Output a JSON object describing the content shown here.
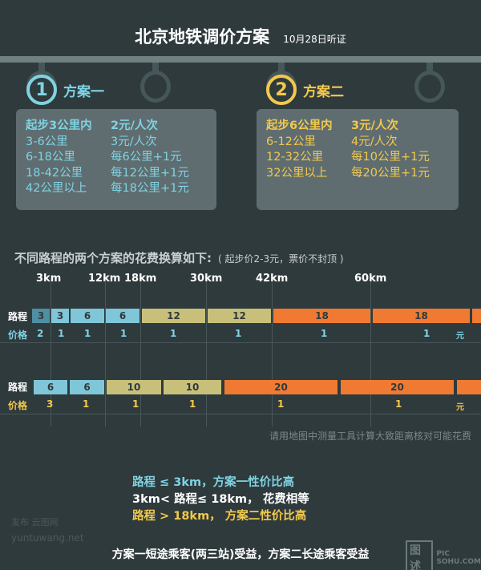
{
  "title": {
    "main": "北京地铁调价方案",
    "sub": "10月28日听证"
  },
  "plan1": {
    "num": "1",
    "name": "方案一",
    "rows": [
      [
        "起步3公里内",
        "2元/人次"
      ],
      [
        "3-6公里",
        "3元/人次"
      ],
      [
        "6-18公里",
        "每6公里+1元"
      ],
      [
        "18-42公里",
        "每12公里+1元"
      ],
      [
        "42公里以上",
        "每18公里+1元"
      ]
    ]
  },
  "plan2": {
    "num": "2",
    "name": "方案二",
    "rows": [
      [
        "起步6公里内",
        "3元/人次"
      ],
      [
        "6-12公里",
        "4元/人次"
      ],
      [
        "12-32公里",
        "每10公里+1元"
      ],
      [
        "32公里以上",
        "每20公里+1元"
      ]
    ]
  },
  "compare": {
    "title": "不同路程的两个方案的花费换算如下:",
    "note": "( 起步价2-3元，票价不封顶 )",
    "km_labels": [
      "3km",
      "12km",
      "18km",
      "30km",
      "42km",
      "60km"
    ],
    "row_label_distance": "路程",
    "row_label_price": "价格",
    "plan1_segments": [
      "3",
      "3",
      "6",
      "6",
      "12",
      "12",
      "18",
      "18"
    ],
    "plan1_prices": [
      "2",
      "1",
      "1",
      "1",
      "1",
      "1",
      "1",
      "1",
      "元"
    ],
    "plan2_segments": [
      "6",
      "6",
      "10",
      "10",
      "20",
      "20"
    ],
    "plan2_prices": [
      "3",
      "1",
      "1",
      "1",
      "1",
      "1",
      "元"
    ]
  },
  "footnote": "请用地图中测量工具计算大致距离核对可能花费",
  "summary": {
    "line1": "路程 ≤ 3km，方案一性价比高",
    "line2": "3km< 路程≤ 18km， 花费相等",
    "line3": "路程 > 18km， 方案二性价比高"
  },
  "watermark": {
    "line1": "发布 云图网",
    "line2": "yuntuwang.net"
  },
  "bottom": "方案一短途乘客(两三站)受益，方案二长途乘客受益",
  "logo": {
    "box": "图述",
    "line1": "PIC",
    "line2": "SOHU.COM"
  },
  "colors": {
    "blue": "#7fc6d8",
    "olive": "#c8c07a",
    "orange": "#f07a32",
    "yellow": "#f2c94c",
    "cyan": "#7fd3e3"
  }
}
